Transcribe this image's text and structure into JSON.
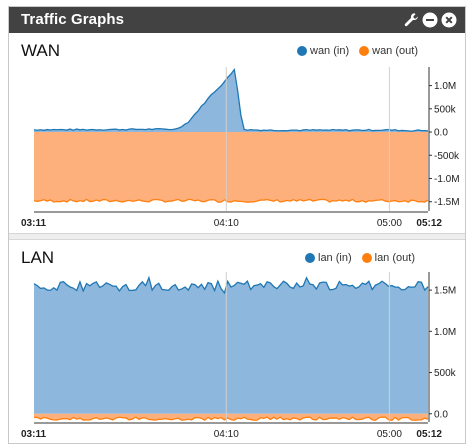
{
  "widget": {
    "title": "Traffic Graphs",
    "icons": [
      "wrench-icon",
      "minimize-icon",
      "close-icon"
    ]
  },
  "colors": {
    "in": "#1f77b4",
    "in_fill": "#8db7dc",
    "out": "#ff7f0e",
    "out_fill": "#fdb07b"
  },
  "chart_data": [
    {
      "type": "area",
      "title": "WAN",
      "series": [
        {
          "name": "wan (in)"
        },
        {
          "name": "wan (out)"
        }
      ],
      "x_ticks": [
        {
          "label": "03:11",
          "bold": true,
          "t": 0.0
        },
        {
          "label": "04:10",
          "bold": false,
          "t": 0.488
        },
        {
          "label": "05:00",
          "bold": false,
          "t": 0.902
        },
        {
          "label": "05:12",
          "bold": true,
          "t": 1.0
        }
      ],
      "y_ticks": [
        {
          "label": "1.0M",
          "value": 1000000
        },
        {
          "label": "500k",
          "value": 500000
        },
        {
          "label": "0.0",
          "value": 0
        },
        {
          "label": "-500k",
          "value": -500000
        },
        {
          "label": "-1.0M",
          "value": -1000000
        },
        {
          "label": "-1.5M",
          "value": -1500000
        }
      ],
      "ylim": [
        -1700000,
        1400000
      ],
      "in_profile": [
        [
          0.0,
          50000
        ],
        [
          0.1,
          50000
        ],
        [
          0.2,
          55000
        ],
        [
          0.3,
          60000
        ],
        [
          0.36,
          60000
        ],
        [
          0.39,
          200000
        ],
        [
          0.42,
          500000
        ],
        [
          0.45,
          800000
        ],
        [
          0.48,
          1050000
        ],
        [
          0.5,
          1250000
        ],
        [
          0.505,
          1350000
        ],
        [
          0.51,
          1350000
        ],
        [
          0.52,
          700000
        ],
        [
          0.53,
          50000
        ],
        [
          0.6,
          40000
        ],
        [
          0.7,
          40000
        ],
        [
          0.8,
          40000
        ],
        [
          0.9,
          45000
        ],
        [
          0.95,
          30000
        ],
        [
          1.0,
          35000
        ]
      ],
      "out_level": -1480000
    },
    {
      "type": "area",
      "title": "LAN",
      "series": [
        {
          "name": "lan (in)"
        },
        {
          "name": "lan (out)"
        }
      ],
      "x_ticks": [
        {
          "label": "03:11",
          "bold": true,
          "t": 0.0
        },
        {
          "label": "04:10",
          "bold": false,
          "t": 0.488
        },
        {
          "label": "05:00",
          "bold": false,
          "t": 0.902
        },
        {
          "label": "05:12",
          "bold": true,
          "t": 1.0
        }
      ],
      "y_ticks": [
        {
          "label": "1.5M",
          "value": 1500000
        },
        {
          "label": "1.0M",
          "value": 1000000
        },
        {
          "label": "500k",
          "value": 500000
        },
        {
          "label": "0.0",
          "value": 0
        }
      ],
      "ylim": [
        -100000,
        1720000
      ],
      "in_level": 1550000,
      "out_level": -60000
    }
  ]
}
